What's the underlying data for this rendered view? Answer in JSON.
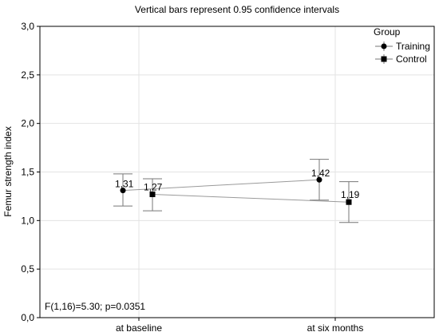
{
  "chart_data": {
    "type": "line",
    "title": "Vertical bars represent 0.95 confidence intervals",
    "xlabel": "",
    "ylabel": "Femur strength index",
    "categories": [
      "at baseline",
      "at six months"
    ],
    "ylim": [
      0.0,
      3.0
    ],
    "yticks": [
      "0,0",
      "0,5",
      "1,0",
      "1,5",
      "2,0",
      "2,5",
      "3,0"
    ],
    "grid": true,
    "legend_title": "Group",
    "legend_position": "top-right",
    "series": [
      {
        "name": "Training",
        "marker": "circle",
        "values": [
          1.31,
          1.42
        ],
        "value_labels": [
          "1,31",
          "1,42"
        ],
        "ci_lower": [
          1.15,
          1.21
        ],
        "ci_upper": [
          1.48,
          1.63
        ]
      },
      {
        "name": "Control",
        "marker": "square",
        "values": [
          1.27,
          1.19
        ],
        "value_labels": [
          "1,27",
          "1,19"
        ],
        "ci_lower": [
          1.1,
          0.98
        ],
        "ci_upper": [
          1.43,
          1.4
        ]
      }
    ],
    "annotation": "F(1,16)=5.30; p=0.0351"
  }
}
